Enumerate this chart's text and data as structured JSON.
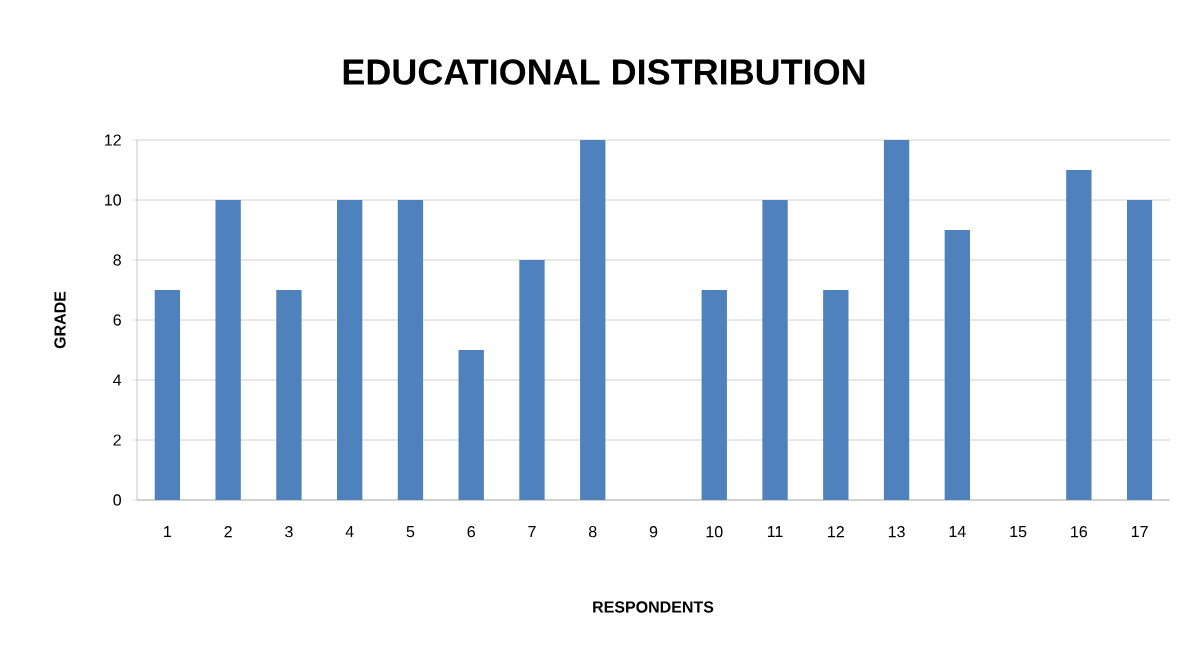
{
  "chart_data": {
    "type": "bar",
    "title": "EDUCATIONAL DISTRIBUTION",
    "xlabel": "RESPONDENTS",
    "ylabel": "GRADE",
    "categories": [
      "1",
      "2",
      "3",
      "4",
      "5",
      "6",
      "7",
      "8",
      "9",
      "10",
      "11",
      "12",
      "13",
      "14",
      "15",
      "16",
      "17"
    ],
    "values": [
      7,
      10,
      7,
      10,
      10,
      5,
      8,
      12,
      0,
      7,
      10,
      7,
      12,
      9,
      0,
      11,
      10
    ],
    "color": "#4f81bd",
    "ylim": [
      0,
      12
    ],
    "yticks": [
      0,
      2,
      4,
      6,
      8,
      10,
      12
    ],
    "grid": "y"
  }
}
